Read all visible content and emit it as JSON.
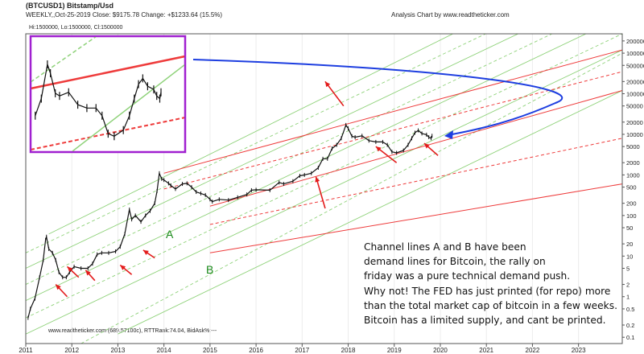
{
  "header": {
    "symbol": "(BTCUSD1) Bitstamp/Usd",
    "info": "WEEKLY,,Oct-25-2019  Close: $9175.78  Change: +$1233.64  (15.5%)",
    "source": "Analysis Chart by www.readtheticker.com",
    "range": "Hi:1500000, Lo:1500000, Cl:1500000",
    "footer": "www.readtheticker.com (689.57100c), RTTRank:74.04, BidAsk%:---"
  },
  "annotations": {
    "label_a": "A",
    "label_b": "B",
    "note_lines": [
      "Channel lines A and B have been",
      "demand lines for Bitcoin, the rally on",
      "friday was a pure technical demand push.",
      "Why not! The FED has just printed (for repo) more",
      "than the total market cap of bitcoin in a few weeks.",
      "Bitcoin has a limited supply, and cant be printed."
    ]
  },
  "colors": {
    "price": "#111111",
    "green_channel": "#8fd27a",
    "red_channel": "#ee3b3b",
    "arrow": "#e31b1b",
    "curve": "#1d3ee0",
    "inset_border": "#a020d0",
    "label_green": "#1b8a1b"
  },
  "chart_data": {
    "type": "line",
    "scale": "log",
    "x_tick_labels": [
      "2011",
      "2012",
      "2013",
      "2014",
      "2015",
      "2016",
      "2017",
      "2018",
      "2019",
      "2020",
      "2021",
      "2022",
      "2023"
    ],
    "y_tick_labels": [
      "2000000",
      "1000000",
      "500000",
      "200000",
      "100000",
      "50000",
      "20000",
      "10000",
      "5000",
      "2000",
      "1000",
      "500",
      "200",
      "100",
      "50",
      "20",
      "10",
      "5",
      "2",
      "1",
      "0.5",
      "0.2",
      "0.1"
    ],
    "y_ticks": [
      2000000,
      1000000,
      500000,
      200000,
      100000,
      50000,
      20000,
      10000,
      5000,
      2000,
      1000,
      500,
      200,
      100,
      50,
      20,
      10,
      5,
      2,
      1,
      0.5,
      0.2,
      0.1
    ],
    "ylim": [
      0.07,
      3000000
    ],
    "xlim": [
      2011.0,
      2023.95
    ],
    "series": [
      {
        "values": [
          [
            2011.05,
            0.3
          ],
          [
            2011.1,
            0.5
          ],
          [
            2011.2,
            0.9
          ],
          [
            2011.3,
            3
          ],
          [
            2011.38,
            8
          ],
          [
            2011.43,
            25
          ],
          [
            2011.45,
            30
          ],
          [
            2011.5,
            15
          ],
          [
            2011.58,
            12
          ],
          [
            2011.65,
            8
          ],
          [
            2011.72,
            4
          ],
          [
            2011.8,
            3
          ],
          [
            2011.88,
            3
          ],
          [
            2011.95,
            4
          ],
          [
            2012.05,
            5.5
          ],
          [
            2012.2,
            5
          ],
          [
            2012.35,
            5
          ],
          [
            2012.45,
            6.5
          ],
          [
            2012.55,
            11
          ],
          [
            2012.65,
            12
          ],
          [
            2012.8,
            12
          ],
          [
            2012.95,
            13
          ],
          [
            2013.05,
            17
          ],
          [
            2013.15,
            35
          ],
          [
            2013.25,
            140
          ],
          [
            2013.3,
            80
          ],
          [
            2013.38,
            100
          ],
          [
            2013.5,
            70
          ],
          [
            2013.6,
            100
          ],
          [
            2013.7,
            130
          ],
          [
            2013.8,
            200
          ],
          [
            2013.85,
            400
          ],
          [
            2013.9,
            1100
          ],
          [
            2013.95,
            800
          ],
          [
            2014.0,
            750
          ],
          [
            2014.1,
            620
          ],
          [
            2014.15,
            550
          ],
          [
            2014.25,
            450
          ],
          [
            2014.4,
            600
          ],
          [
            2014.5,
            620
          ],
          [
            2014.6,
            500
          ],
          [
            2014.7,
            380
          ],
          [
            2014.8,
            350
          ],
          [
            2014.9,
            320
          ],
          [
            2015.0,
            250
          ],
          [
            2015.05,
            220
          ],
          [
            2015.2,
            250
          ],
          [
            2015.4,
            240
          ],
          [
            2015.6,
            280
          ],
          [
            2015.8,
            330
          ],
          [
            2015.9,
            420
          ],
          [
            2016.0,
            430
          ],
          [
            2016.3,
            420
          ],
          [
            2016.5,
            650
          ],
          [
            2016.6,
            600
          ],
          [
            2016.8,
            700
          ],
          [
            2016.95,
            950
          ],
          [
            2017.05,
            1000
          ],
          [
            2017.2,
            1100
          ],
          [
            2017.35,
            1500
          ],
          [
            2017.45,
            2500
          ],
          [
            2017.55,
            2500
          ],
          [
            2017.65,
            4500
          ],
          [
            2017.75,
            5500
          ],
          [
            2017.85,
            8000
          ],
          [
            2017.95,
            17000
          ],
          [
            2018.0,
            14000
          ],
          [
            2018.08,
            9000
          ],
          [
            2018.15,
            8500
          ],
          [
            2018.3,
            9200
          ],
          [
            2018.45,
            7000
          ],
          [
            2018.6,
            6500
          ],
          [
            2018.75,
            6500
          ],
          [
            2018.85,
            5500
          ],
          [
            2018.95,
            3700
          ],
          [
            2019.05,
            3500
          ],
          [
            2019.2,
            4000
          ],
          [
            2019.3,
            5500
          ],
          [
            2019.38,
            8000
          ],
          [
            2019.45,
            11000
          ],
          [
            2019.52,
            12500
          ],
          [
            2019.6,
            10500
          ],
          [
            2019.7,
            9800
          ],
          [
            2019.75,
            8500
          ],
          [
            2019.8,
            8000
          ],
          [
            2019.82,
            9200
          ]
        ]
      }
    ],
    "overlays": {
      "green_lines": [
        [
          [
            2011.5,
            35
          ],
          [
            2023.95,
            350000000.0
          ]
        ],
        [
          [
            2011.0,
            5
          ],
          [
            2023.95,
            50000000.0
          ]
        ],
        [
          [
            2011.0,
            0.8
          ],
          [
            2023.95,
            8000000.0
          ]
        ],
        [
          [
            2011.0,
            0.12
          ],
          [
            2023.95,
            1200000.0
          ]
        ],
        [
          [
            2013.0,
            0.12
          ],
          [
            2023.95,
            120000.0
          ]
        ]
      ],
      "green_dashed_lines": [
        [
          [
            2011.0,
            12
          ],
          [
            2023.95,
            120000000.0
          ]
        ],
        [
          [
            2011.0,
            2
          ],
          [
            2023.95,
            20000000.0
          ]
        ],
        [
          [
            2011.0,
            0.3
          ],
          [
            2023.95,
            3000000.0
          ]
        ],
        [
          [
            2012.2,
            0.07
          ],
          [
            2023.95,
            1000000.0
          ]
        ]
      ],
      "red_lines": [
        [
          [
            2014.0,
            1100
          ],
          [
            2023.95,
            1200000.0
          ]
        ],
        [
          [
            2015.0,
            170
          ],
          [
            2023.95,
            120000.0
          ]
        ],
        [
          [
            2015.0,
            12
          ],
          [
            2023.95,
            600
          ]
        ]
      ],
      "red_dashed_lines": [
        [
          [
            2014.0,
            450
          ],
          [
            2023.95,
            350000.0
          ]
        ],
        [
          [
            2015.0,
            60
          ],
          [
            2023.95,
            8000
          ]
        ]
      ],
      "arrows": [
        [
          [
            2011.9,
            1
          ],
          [
            2011.65,
            2
          ]
        ],
        [
          [
            2012.15,
            3
          ],
          [
            2011.9,
            5.5
          ]
        ],
        [
          [
            2012.5,
            2.5
          ],
          [
            2012.3,
            4.5
          ]
        ],
        [
          [
            2013.3,
            3.5
          ],
          [
            2013.05,
            6
          ]
        ],
        [
          [
            2013.8,
            9
          ],
          [
            2013.55,
            14
          ]
        ],
        [
          [
            2017.5,
            150
          ],
          [
            2017.3,
            900
          ]
        ],
        [
          [
            2017.9,
            50000
          ],
          [
            2017.5,
            200000
          ]
        ],
        [
          [
            2019.05,
            2000
          ],
          [
            2018.6,
            5000
          ]
        ],
        [
          [
            2019.95,
            3000
          ],
          [
            2019.65,
            6000
          ]
        ]
      ]
    }
  }
}
